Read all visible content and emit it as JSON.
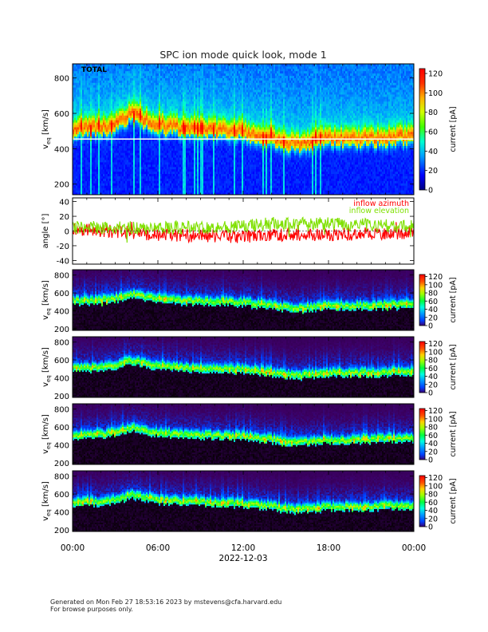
{
  "title": "SPC ion mode quick look, mode 1",
  "footer": {
    "line1": "Generated on Mon Feb 27 18:53:16 2023 by mstevens@cfa.harvard.edu",
    "line2": "For browse purposes only."
  },
  "time_axis": {
    "ticks": [
      "00:00",
      "06:00",
      "12:00",
      "18:00",
      "00:00"
    ],
    "range_hours": [
      0,
      24
    ],
    "date_label": "2022-12-03"
  },
  "chart_data": [
    {
      "type": "heatmap",
      "panel_label": "TOTAL",
      "colormap": "rainbow",
      "ylabel": "v_eq [km/s]",
      "yticks": [
        200,
        400,
        600,
        800
      ],
      "ylim": [
        140,
        880
      ],
      "colorbar": {
        "label": "current [pA]",
        "ticks": [
          0,
          20,
          40,
          60,
          80,
          100,
          120
        ],
        "range": [
          0,
          125
        ]
      },
      "peak_velocity_profile": {
        "hours": [
          0,
          2,
          3.5,
          4,
          6,
          8,
          10,
          12,
          14,
          15,
          16,
          17,
          18,
          20,
          22,
          24
        ],
        "velocity": [
          520,
          520,
          560,
          600,
          540,
          520,
          510,
          500,
          470,
          440,
          430,
          450,
          460,
          460,
          470,
          480
        ]
      }
    },
    {
      "type": "line",
      "ylabel": "angle [°]",
      "yticks": [
        -40,
        -20,
        0,
        20,
        40
      ],
      "ylim": [
        -45,
        45
      ],
      "series": [
        {
          "name": "inflow azimuth",
          "color": "#ff0000",
          "trend_hours": [
            0,
            6,
            12,
            14,
            18,
            24
          ],
          "trend_values": [
            3,
            -5,
            -8,
            -5,
            -5,
            -2
          ]
        },
        {
          "name": "inflow elevation",
          "color": "#7fe000",
          "trend_hours": [
            0,
            6,
            12,
            14,
            18,
            24
          ],
          "trend_values": [
            5,
            4,
            6,
            10,
            10,
            6
          ]
        }
      ]
    },
    {
      "type": "heatmap",
      "panel_label": "",
      "colormap": "purple",
      "ylabel": "v_eq [km/s]",
      "yticks": [
        200,
        400,
        600,
        800
      ],
      "ylim": [
        180,
        860
      ],
      "colorbar": {
        "label": "current [pA]",
        "ticks": [
          0,
          20,
          40,
          60,
          80,
          100,
          120
        ],
        "range": [
          0,
          125
        ]
      }
    },
    {
      "type": "heatmap",
      "panel_label": "",
      "colormap": "purple",
      "ylabel": "v_eq [km/s]",
      "yticks": [
        200,
        400,
        600,
        800
      ],
      "ylim": [
        180,
        860
      ],
      "colorbar": {
        "label": "current [pA]",
        "ticks": [
          0,
          20,
          40,
          60,
          80,
          100,
          120
        ],
        "range": [
          0,
          125
        ]
      }
    },
    {
      "type": "heatmap",
      "panel_label": "",
      "colormap": "purple",
      "ylabel": "v_eq [km/s]",
      "yticks": [
        200,
        400,
        600,
        800
      ],
      "ylim": [
        180,
        860
      ],
      "colorbar": {
        "label": "current [pA]",
        "ticks": [
          0,
          20,
          40,
          60,
          80,
          100,
          120
        ],
        "range": [
          0,
          125
        ]
      }
    },
    {
      "type": "heatmap",
      "panel_label": "",
      "colormap": "purple",
      "ylabel": "v_eq [km/s]",
      "yticks": [
        200,
        400,
        600,
        800
      ],
      "ylim": [
        180,
        860
      ],
      "colorbar": {
        "label": "current [pA]",
        "ticks": [
          0,
          20,
          40,
          60,
          80,
          100,
          120
        ],
        "range": [
          0,
          125
        ]
      }
    }
  ]
}
